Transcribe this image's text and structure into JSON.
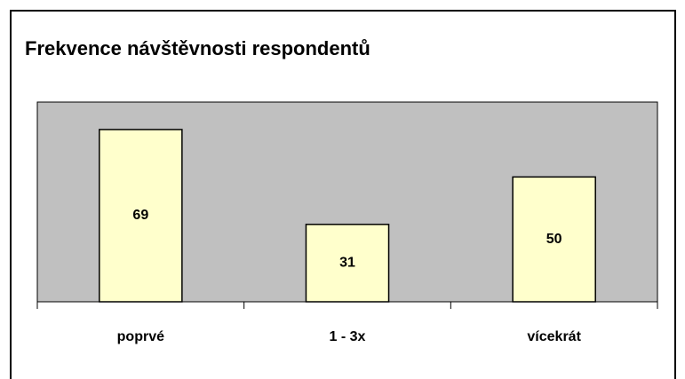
{
  "chart_data": {
    "type": "bar",
    "title": "Frekvence návštěvnosti respondentů",
    "categories": [
      "poprvé",
      "1 - 3x",
      "vícekrát"
    ],
    "values": [
      69,
      31,
      50
    ],
    "color": "#ffffcc",
    "plot_background": "#c0c0c0",
    "ylim": [
      0,
      80
    ]
  }
}
